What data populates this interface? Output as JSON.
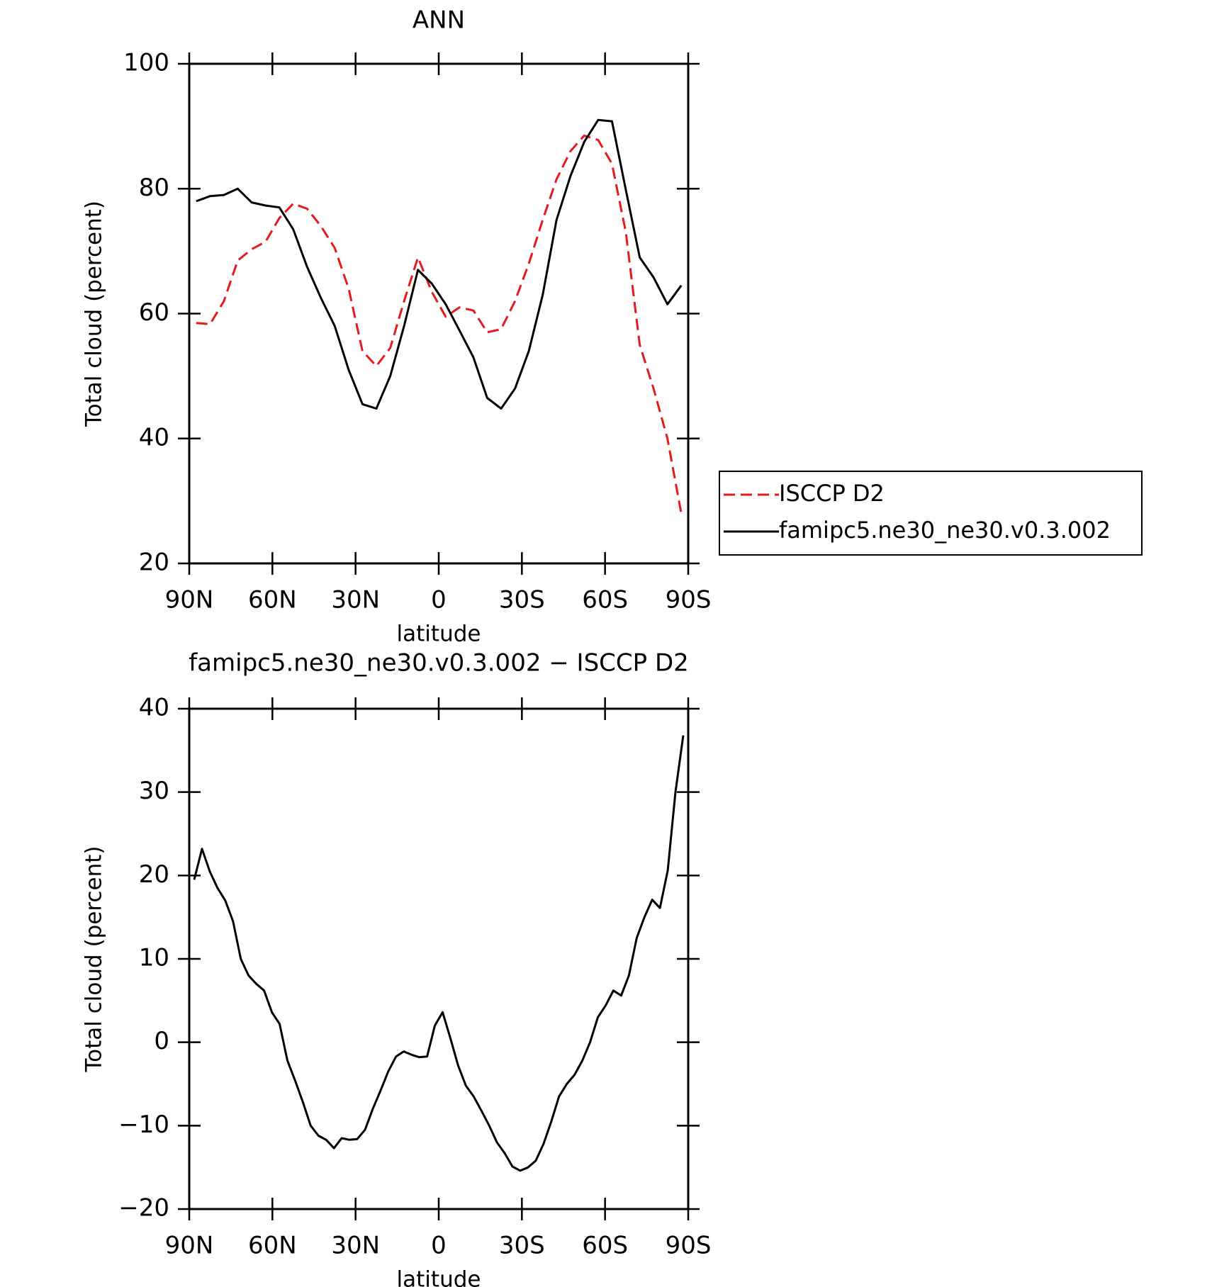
{
  "chart_data": [
    {
      "type": "line",
      "title": "ANN",
      "xlabel": "latitude",
      "ylabel": "Total cloud (percent)",
      "xlim": [
        90,
        -90
      ],
      "xticks": [
        {
          "value": 90,
          "label": "90N"
        },
        {
          "value": 60,
          "label": "60N"
        },
        {
          "value": 30,
          "label": "30N"
        },
        0,
        {
          "value": -30,
          "label": "30S"
        },
        {
          "value": -60,
          "label": "60S"
        },
        {
          "value": -90,
          "label": "90S"
        }
      ],
      "ylim": [
        20,
        100
      ],
      "yticks": [
        20,
        40,
        60,
        80,
        100
      ],
      "x": [
        87.5,
        82.5,
        77.5,
        72.5,
        67.5,
        62.5,
        57.5,
        52.5,
        47.5,
        42.5,
        37.5,
        32.5,
        27.5,
        22.5,
        17.5,
        12.5,
        7.5,
        2.5,
        -2.5,
        -7.5,
        -12.5,
        -17.5,
        -22.5,
        -27.5,
        -32.5,
        -37.5,
        -42.5,
        -47.5,
        -52.5,
        -57.5,
        -62.5,
        -67.5,
        -72.5,
        -77.5,
        -82.5,
        -87.5
      ],
      "legend": "right",
      "series": [
        {
          "name": "ISCCP D2",
          "color": "#e41a1c",
          "dashed": true,
          "values": [
            58.5,
            58.3,
            62,
            68.5,
            70.3,
            71.5,
            75.3,
            77.6,
            76.8,
            74,
            70.5,
            64,
            54,
            51.6,
            54.5,
            62,
            69,
            63.5,
            59.5,
            61,
            60.5,
            57,
            57.5,
            62,
            68,
            75,
            81.5,
            86,
            88.5,
            87.8,
            84,
            73,
            55,
            48,
            40,
            28
          ]
        },
        {
          "name": "famipc5.ne30_ne30.v0.3.002",
          "color": "#000000",
          "dashed": false,
          "values": [
            78,
            78.8,
            79,
            80,
            77.8,
            77.3,
            77,
            73.5,
            67.5,
            62.5,
            58,
            51,
            45.5,
            44.8,
            50,
            58,
            67,
            64.8,
            61.5,
            57.3,
            53,
            46.5,
            44.8,
            48,
            54,
            63,
            75,
            82,
            87.5,
            91,
            90.8,
            79.8,
            69,
            65.8,
            61.5,
            64.5
          ]
        }
      ]
    },
    {
      "type": "line",
      "title": "famipc5.ne30_ne30.v0.3.002 − ISCCP D2",
      "xlabel": "latitude",
      "ylabel": "Total cloud (percent)",
      "xlim": [
        90,
        -90
      ],
      "xticks": [
        {
          "value": 90,
          "label": "90N"
        },
        {
          "value": 60,
          "label": "60N"
        },
        {
          "value": 30,
          "label": "30N"
        },
        0,
        {
          "value": -30,
          "label": "30S"
        },
        {
          "value": -60,
          "label": "60S"
        },
        {
          "value": -90,
          "label": "90S"
        }
      ],
      "ylim": [
        -20,
        40
      ],
      "yticks": [
        {
          "value": -20,
          "label": "−20"
        },
        {
          "value": -10,
          "label": "−10"
        },
        0,
        10,
        20,
        30,
        40
      ],
      "x": [
        88.2,
        85.4,
        82.6,
        79.8,
        77,
        74.2,
        71.4,
        68.6,
        65.8,
        63,
        60.2,
        57.4,
        54.6,
        51.8,
        49,
        46.2,
        43.4,
        40.6,
        37.8,
        35,
        32.2,
        29.4,
        26.6,
        23.8,
        21,
        18.2,
        15.4,
        12.6,
        9.8,
        7,
        4.2,
        1.4,
        -1.4,
        -4.2,
        -7,
        -9.8,
        -12.6,
        -15.4,
        -18.2,
        -21,
        -23.8,
        -26.6,
        -29.4,
        -32.2,
        -35,
        -37.8,
        -40.6,
        -43.4,
        -46.2,
        -49,
        -51.8,
        -54.6,
        -57.4,
        -60.2,
        -63,
        -65.8,
        -68.6,
        -71.4,
        -74.2,
        -77,
        -79.8,
        -82.6,
        -85.4,
        -88.2
      ],
      "series": [
        {
          "color": "#000000",
          "dashed": false,
          "values": [
            19.5,
            23.2,
            20.5,
            18.5,
            17,
            14.5,
            10,
            8,
            7,
            6.2,
            3.6,
            2.2,
            -2.2,
            -4.6,
            -7.2,
            -10,
            -11.2,
            -11.7,
            -12.7,
            -11.5,
            -11.7,
            -11.6,
            -10.5,
            -8,
            -5.8,
            -3.5,
            -1.7,
            -1.1,
            -1.5,
            -1.8,
            -1.7,
            2,
            3.6,
            0.5,
            -2.8,
            -5.2,
            -6.5,
            -8.2,
            -10,
            -12,
            -13.3,
            -14.9,
            -15.4,
            -15,
            -14.2,
            -12.2,
            -9.5,
            -6.5,
            -5,
            -3.9,
            -2.2,
            0,
            3,
            4.4,
            6.2,
            5.6,
            8,
            12.5,
            15,
            17.1,
            16.1,
            20.6,
            30,
            36.8
          ]
        }
      ]
    }
  ]
}
